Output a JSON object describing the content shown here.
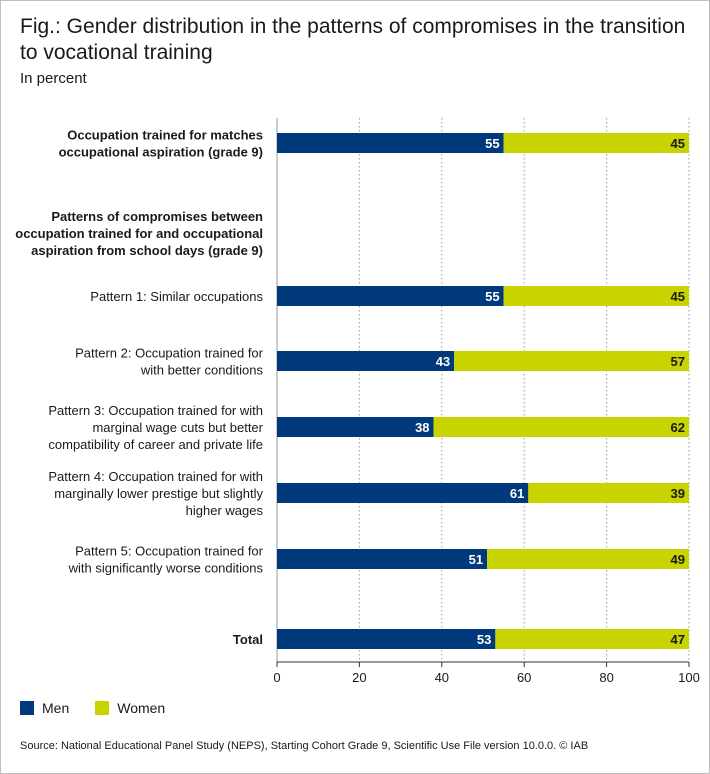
{
  "figure": {
    "title": "Fig.: Gender distribution in the patterns of compromises in the transition to vocational training",
    "subtitle": "In percent",
    "source": "Source: National Educational Panel Study (NEPS), Starting Cohort Grade 9, Scientific Use File version 10.0.0. © IAB"
  },
  "chart_data": {
    "type": "bar",
    "orientation": "horizontal",
    "stacked": true,
    "categories": [
      "Occupation trained for matches occupational aspiration (grade 9)",
      "Patterns of compromises between occupation trained for and occupational aspiration from school days (grade 9)",
      "Pattern 1: Similar occupations",
      "Pattern 2: Occupation trained for with better conditions",
      "Pattern 3: Occupation trained for with marginal wage cuts but better compatibility of career and private life",
      "Pattern 4: Occupation trained for with marginally lower prestige but slightly higher wages",
      "Pattern 5: Occupation trained for with significantly worse conditions",
      "Total"
    ],
    "series": [
      {
        "name": "Men",
        "color": "#003a7d",
        "values": [
          55,
          null,
          55,
          43,
          38,
          61,
          51,
          53
        ]
      },
      {
        "name": "Women",
        "color": "#c8d400",
        "values": [
          45,
          null,
          45,
          57,
          62,
          39,
          49,
          47
        ]
      }
    ],
    "xlim": [
      0,
      100
    ],
    "xticks": [
      0,
      20,
      40,
      60,
      80,
      100
    ],
    "grid": "vertical-dotted",
    "legend_position": "bottom-left"
  }
}
